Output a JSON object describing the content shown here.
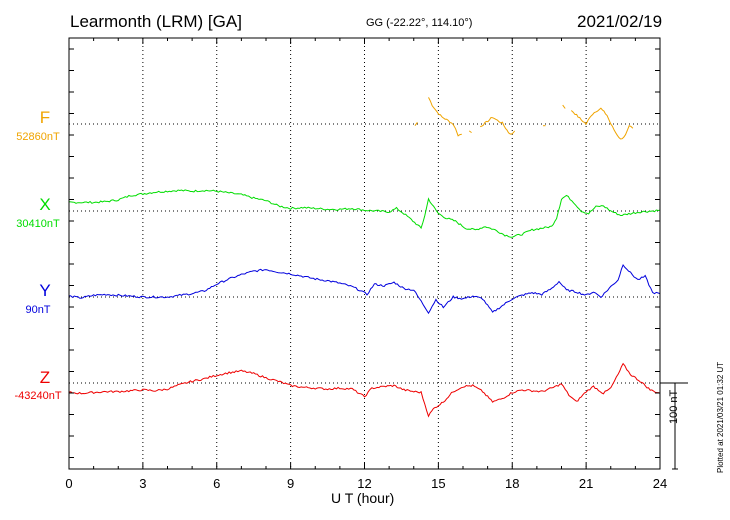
{
  "header": {
    "station": "Learmonth (LRM)  [GA]",
    "coords": "GG (-22.22°, 114.10°)",
    "date": "2021/02/19"
  },
  "footer": {
    "plotted": "Plotted at 2021/03/21 01:32 UT"
  },
  "chart_data": {
    "type": "line",
    "title": "Learmonth (LRM)  [GA]",
    "xlabel": "U T (hour)",
    "xlim": [
      0,
      24
    ],
    "xticks": [
      0,
      3,
      6,
      9,
      12,
      15,
      18,
      21,
      24
    ],
    "xtick_labels": [
      "0",
      "3",
      "6",
      "9",
      "12",
      "15",
      "18",
      "21",
      "24"
    ],
    "grid": true,
    "scale_bar_nT": 100,
    "scale_bar_label": "100 nT",
    "series": [
      {
        "name": "F",
        "baseline_label": "52860nT",
        "color": "#f0a400",
        "segments": [
          [
            [
              14.6,
              31
            ],
            [
              14.75,
              22
            ],
            [
              14.95,
              14
            ],
            [
              15.15,
              8
            ],
            [
              15.4,
              4
            ],
            [
              15.6,
              0
            ],
            [
              15.7,
              -6
            ],
            [
              15.8,
              -13
            ],
            [
              15.95,
              -12
            ]
          ],
          [
            [
              14.05,
              -2
            ],
            [
              14.15,
              2
            ]
          ],
          [
            [
              16.25,
              -8
            ],
            [
              16.35,
              -10
            ]
          ],
          [
            [
              16.7,
              -3
            ],
            [
              16.95,
              2
            ],
            [
              17.2,
              8
            ],
            [
              17.4,
              4
            ],
            [
              17.6,
              1
            ],
            [
              17.85,
              -10
            ],
            [
              18.0,
              -12
            ],
            [
              18.1,
              -8
            ]
          ],
          [
            [
              19.25,
              -2
            ],
            [
              19.35,
              -2
            ]
          ],
          [
            [
              20.05,
              22
            ],
            [
              20.15,
              18
            ]
          ],
          [
            [
              20.4,
              16
            ],
            [
              20.55,
              12
            ],
            [
              20.8,
              5
            ],
            [
              21.0,
              0
            ],
            [
              21.2,
              10
            ],
            [
              21.4,
              15
            ],
            [
              21.6,
              18
            ],
            [
              21.85,
              10
            ],
            [
              22.0,
              0
            ],
            [
              22.2,
              -10
            ],
            [
              22.4,
              -18
            ],
            [
              22.6,
              -13
            ],
            [
              22.75,
              -3
            ],
            [
              22.9,
              -5
            ]
          ]
        ]
      },
      {
        "name": "X",
        "baseline_label": "30410nT",
        "color": "#00dd00",
        "segments": [
          [
            [
              0,
              10
            ],
            [
              0.5,
              10
            ],
            [
              1.0,
              10
            ],
            [
              1.5,
              11
            ],
            [
              2.0,
              13
            ],
            [
              2.5,
              18
            ],
            [
              3.0,
              20
            ],
            [
              3.5,
              22
            ],
            [
              4.0,
              23
            ],
            [
              4.5,
              24
            ],
            [
              5.0,
              23
            ],
            [
              5.5,
              24
            ],
            [
              6.0,
              23
            ],
            [
              6.5,
              21
            ],
            [
              7.0,
              19
            ],
            [
              7.5,
              15
            ],
            [
              8.0,
              12
            ],
            [
              8.5,
              6
            ],
            [
              9.0,
              3
            ],
            [
              9.5,
              4
            ],
            [
              10.0,
              3
            ],
            [
              10.5,
              2
            ],
            [
              11.0,
              2
            ],
            [
              11.5,
              3
            ],
            [
              12.0,
              1
            ],
            [
              12.5,
              0
            ],
            [
              13.0,
              -1
            ],
            [
              13.3,
              3
            ],
            [
              13.6,
              -3
            ],
            [
              13.9,
              -10
            ],
            [
              14.1,
              -15
            ],
            [
              14.3,
              -20
            ],
            [
              14.45,
              -5
            ],
            [
              14.6,
              14
            ],
            [
              14.8,
              5
            ],
            [
              15.0,
              -3
            ],
            [
              15.3,
              -8
            ],
            [
              15.7,
              -12
            ],
            [
              16.1,
              -20
            ],
            [
              16.5,
              -22
            ],
            [
              16.9,
              -18
            ],
            [
              17.3,
              -22
            ],
            [
              17.7,
              -28
            ],
            [
              18.0,
              -30
            ],
            [
              18.4,
              -27
            ],
            [
              18.8,
              -22
            ],
            [
              19.2,
              -20
            ],
            [
              19.6,
              -18
            ],
            [
              19.8,
              -8
            ],
            [
              20.0,
              14
            ],
            [
              20.2,
              18
            ],
            [
              20.5,
              10
            ],
            [
              20.8,
              0
            ],
            [
              21.1,
              -3
            ],
            [
              21.4,
              5
            ],
            [
              21.7,
              6
            ],
            [
              22.0,
              0
            ],
            [
              22.4,
              -5
            ],
            [
              22.8,
              -3
            ],
            [
              23.2,
              -1
            ],
            [
              23.7,
              0
            ],
            [
              24.0,
              1
            ]
          ]
        ]
      },
      {
        "name": "Y",
        "baseline_label": "90nT",
        "color": "#0000dd",
        "segments": [
          [
            [
              0,
              1
            ],
            [
              0.5,
              -1
            ],
            [
              1.0,
              2
            ],
            [
              1.5,
              3
            ],
            [
              2.0,
              2
            ],
            [
              2.5,
              1
            ],
            [
              3.0,
              0
            ],
            [
              3.5,
              0
            ],
            [
              4.0,
              0
            ],
            [
              4.5,
              2
            ],
            [
              5.0,
              4
            ],
            [
              5.5,
              7
            ],
            [
              6.0,
              15
            ],
            [
              6.5,
              21
            ],
            [
              7.0,
              26
            ],
            [
              7.5,
              30
            ],
            [
              8.0,
              32
            ],
            [
              8.5,
              29
            ],
            [
              9.0,
              27
            ],
            [
              9.5,
              24
            ],
            [
              10.0,
              21
            ],
            [
              10.5,
              19
            ],
            [
              11.0,
              16
            ],
            [
              11.5,
              12
            ],
            [
              11.8,
              8
            ],
            [
              12.1,
              3
            ],
            [
              12.4,
              15
            ],
            [
              12.8,
              13
            ],
            [
              13.2,
              17
            ],
            [
              13.6,
              10
            ],
            [
              14.0,
              8
            ],
            [
              14.3,
              -5
            ],
            [
              14.6,
              -18
            ],
            [
              14.9,
              -3
            ],
            [
              15.2,
              -12
            ],
            [
              15.6,
              0
            ],
            [
              16.0,
              -2
            ],
            [
              16.4,
              1
            ],
            [
              16.8,
              -2
            ],
            [
              17.2,
              -18
            ],
            [
              17.6,
              -10
            ],
            [
              18.0,
              -2
            ],
            [
              18.4,
              2
            ],
            [
              18.8,
              5
            ],
            [
              19.2,
              3
            ],
            [
              19.6,
              10
            ],
            [
              19.9,
              18
            ],
            [
              20.2,
              8
            ],
            [
              20.6,
              6
            ],
            [
              21.0,
              2
            ],
            [
              21.3,
              6
            ],
            [
              21.6,
              0
            ],
            [
              22.0,
              12
            ],
            [
              22.3,
              20
            ],
            [
              22.5,
              38
            ],
            [
              22.8,
              28
            ],
            [
              23.1,
              20
            ],
            [
              23.4,
              24
            ],
            [
              23.7,
              5
            ],
            [
              24.0,
              4
            ]
          ]
        ]
      },
      {
        "name": "Z",
        "baseline_label": "-43240nT",
        "color": "#ee0000",
        "segments": [
          [
            [
              0,
              -11
            ],
            [
              0.5,
              -12
            ],
            [
              1.0,
              -11
            ],
            [
              1.5,
              -10
            ],
            [
              2.0,
              -10
            ],
            [
              2.5,
              -9
            ],
            [
              3.0,
              -8
            ],
            [
              3.5,
              -9
            ],
            [
              4.0,
              -7
            ],
            [
              4.5,
              -2
            ],
            [
              5.0,
              2
            ],
            [
              5.5,
              5
            ],
            [
              6.0,
              9
            ],
            [
              6.5,
              12
            ],
            [
              7.0,
              14
            ],
            [
              7.5,
              11
            ],
            [
              8.0,
              6
            ],
            [
              8.5,
              2
            ],
            [
              9.0,
              -3
            ],
            [
              9.5,
              -5
            ],
            [
              10.0,
              -6
            ],
            [
              10.5,
              -7
            ],
            [
              11.0,
              -6
            ],
            [
              11.5,
              -7
            ],
            [
              12.0,
              -16
            ],
            [
              12.3,
              -6
            ],
            [
              12.8,
              -4
            ],
            [
              13.2,
              -3
            ],
            [
              13.6,
              -8
            ],
            [
              14.0,
              -10
            ],
            [
              14.3,
              -11
            ],
            [
              14.6,
              -38
            ],
            [
              14.8,
              -30
            ],
            [
              15.2,
              -22
            ],
            [
              15.6,
              -10
            ],
            [
              16.0,
              -4
            ],
            [
              16.4,
              -3
            ],
            [
              16.8,
              -10
            ],
            [
              17.2,
              -22
            ],
            [
              17.6,
              -18
            ],
            [
              18.0,
              -11
            ],
            [
              18.4,
              -8
            ],
            [
              18.8,
              -9
            ],
            [
              19.2,
              -10
            ],
            [
              19.6,
              -6
            ],
            [
              20.0,
              -1
            ],
            [
              20.3,
              -14
            ],
            [
              20.6,
              -22
            ],
            [
              21.0,
              -10
            ],
            [
              21.3,
              -4
            ],
            [
              21.7,
              -12
            ],
            [
              22.0,
              -6
            ],
            [
              22.3,
              10
            ],
            [
              22.5,
              22
            ],
            [
              22.8,
              10
            ],
            [
              23.2,
              2
            ],
            [
              23.6,
              -8
            ],
            [
              24.0,
              -12
            ]
          ]
        ]
      }
    ]
  }
}
